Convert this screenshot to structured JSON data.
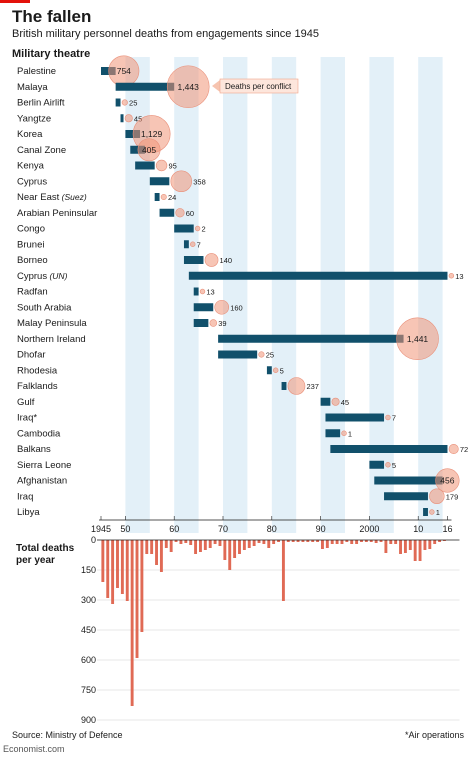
{
  "header": {
    "title": "The fallen",
    "subtitle": "British military personnel deaths from engagements since 1945"
  },
  "chart_data": [
    {
      "type": "bar",
      "subtype": "timeline-range-with-bubbles",
      "ylabel": "Military theatre",
      "legend_label": "Deaths per conflict",
      "x_ticks": [
        "1945",
        "50",
        "60",
        "70",
        "80",
        "90",
        "2000",
        "10",
        "16"
      ],
      "x_tick_values": [
        1945,
        1950,
        1960,
        1970,
        1980,
        1990,
        2000,
        2010,
        2016
      ],
      "xlim": [
        1945,
        2016
      ],
      "theatres": [
        {
          "label": "Palestine",
          "start": 1945,
          "end": 1948,
          "deaths": 754,
          "label_text": "754"
        },
        {
          "label": "Malaya",
          "start": 1948,
          "end": 1960,
          "deaths": 1443,
          "label_text": "1,443"
        },
        {
          "label": "Berlin Airlift",
          "start": 1948,
          "end": 1949,
          "deaths": 25,
          "label_text": "25"
        },
        {
          "label": "Yangtze",
          "start": 1949,
          "end": 1949.5,
          "deaths": 45,
          "label_text": "45"
        },
        {
          "label": "Korea",
          "start": 1950,
          "end": 1953,
          "deaths": 1129,
          "label_text": "1,129"
        },
        {
          "label": "Canal Zone",
          "start": 1951,
          "end": 1954,
          "deaths": 405,
          "label_text": "405"
        },
        {
          "label": "Kenya",
          "start": 1952,
          "end": 1956,
          "deaths": 95,
          "label_text": "95"
        },
        {
          "label": "Cyprus",
          "start": 1955,
          "end": 1959,
          "deaths": 358,
          "label_text": "358"
        },
        {
          "label": "Near East",
          "label_suffix": "(Suez)",
          "start": 1956,
          "end": 1957,
          "deaths": 24,
          "label_text": "24"
        },
        {
          "label": "Arabian Peninsular",
          "start": 1957,
          "end": 1960,
          "deaths": 60,
          "label_text": "60"
        },
        {
          "label": "Congo",
          "start": 1960,
          "end": 1964,
          "deaths": 2,
          "label_text": "2"
        },
        {
          "label": "Brunei",
          "start": 1962,
          "end": 1963,
          "deaths": 7,
          "label_text": "7"
        },
        {
          "label": "Borneo",
          "start": 1962,
          "end": 1966,
          "deaths": 140,
          "label_text": "140"
        },
        {
          "label": "Cyprus",
          "label_suffix": "(UN)",
          "start": 1963,
          "end": 2016,
          "deaths": 13,
          "label_text": "13"
        },
        {
          "label": "Radfan",
          "start": 1964,
          "end": 1965,
          "deaths": 13,
          "label_text": "13"
        },
        {
          "label": "South Arabia",
          "start": 1964,
          "end": 1968,
          "deaths": 160,
          "label_text": "160"
        },
        {
          "label": "Malay Peninsula",
          "start": 1964,
          "end": 1967,
          "deaths": 39,
          "label_text": "39"
        },
        {
          "label": "Northern Ireland",
          "start": 1969,
          "end": 2007,
          "deaths": 1441,
          "label_text": "1,441"
        },
        {
          "label": "Dhofar",
          "start": 1969,
          "end": 1977,
          "deaths": 25,
          "label_text": "25"
        },
        {
          "label": "Rhodesia",
          "start": 1979,
          "end": 1980,
          "deaths": 5,
          "label_text": "5"
        },
        {
          "label": "Falklands",
          "start": 1982,
          "end": 1983,
          "deaths": 237,
          "label_text": "237"
        },
        {
          "label": "Gulf",
          "start": 1990,
          "end": 1992,
          "deaths": 45,
          "label_text": "45"
        },
        {
          "label": "Iraq*",
          "start": 1991,
          "end": 2003,
          "deaths": 7,
          "label_text": "7"
        },
        {
          "label": "Cambodia",
          "start": 1991,
          "end": 1994,
          "deaths": 1,
          "label_text": "1"
        },
        {
          "label": "Balkans",
          "start": 1992,
          "end": 2016,
          "deaths": 72,
          "label_text": "72"
        },
        {
          "label": "Sierra Leone",
          "start": 2000,
          "end": 2003,
          "deaths": 5,
          "label_text": "5"
        },
        {
          "label": "Afghanistan",
          "start": 2001,
          "end": 2015,
          "deaths": 456,
          "label_text": "456"
        },
        {
          "label": "Iraq",
          "start": 2003,
          "end": 2012,
          "deaths": 179,
          "label_text": "179"
        },
        {
          "label": "Libya",
          "start": 2011,
          "end": 2012,
          "deaths": 1,
          "label_text": "1"
        }
      ]
    },
    {
      "type": "bar",
      "title": "Total deaths per year",
      "title_lines": [
        "Total deaths",
        "per year"
      ],
      "y_ticks": [
        "0",
        "150",
        "300",
        "450",
        "600",
        "750",
        "900"
      ],
      "y_tick_values": [
        0,
        150,
        300,
        450,
        600,
        750,
        900
      ],
      "ylim": [
        0,
        900
      ],
      "x": [
        1945,
        1946,
        1947,
        1948,
        1949,
        1950,
        1951,
        1952,
        1953,
        1954,
        1955,
        1956,
        1957,
        1958,
        1959,
        1960,
        1961,
        1962,
        1963,
        1964,
        1965,
        1966,
        1967,
        1968,
        1969,
        1970,
        1971,
        1972,
        1973,
        1974,
        1975,
        1976,
        1977,
        1978,
        1979,
        1980,
        1981,
        1982,
        1983,
        1984,
        1985,
        1986,
        1987,
        1988,
        1989,
        1990,
        1991,
        1992,
        1993,
        1994,
        1995,
        1996,
        1997,
        1998,
        1999,
        2000,
        2001,
        2002,
        2003,
        2004,
        2005,
        2006,
        2007,
        2008,
        2009,
        2010,
        2011,
        2012,
        2013,
        2014,
        2015
      ],
      "values": [
        210,
        290,
        320,
        240,
        270,
        305,
        830,
        590,
        460,
        70,
        70,
        125,
        160,
        40,
        60,
        10,
        20,
        15,
        25,
        70,
        60,
        50,
        40,
        20,
        30,
        100,
        150,
        90,
        70,
        50,
        40,
        30,
        15,
        20,
        40,
        20,
        10,
        305,
        10,
        10,
        10,
        10,
        10,
        10,
        10,
        45,
        40,
        20,
        20,
        20,
        10,
        20,
        20,
        10,
        10,
        10,
        15,
        10,
        65,
        20,
        20,
        70,
        65,
        50,
        105,
        105,
        50,
        45,
        20,
        10,
        5
      ]
    }
  ],
  "footer": {
    "source": "Source: Ministry of Defence",
    "note": "*Air operations",
    "brand": "Economist.com"
  }
}
